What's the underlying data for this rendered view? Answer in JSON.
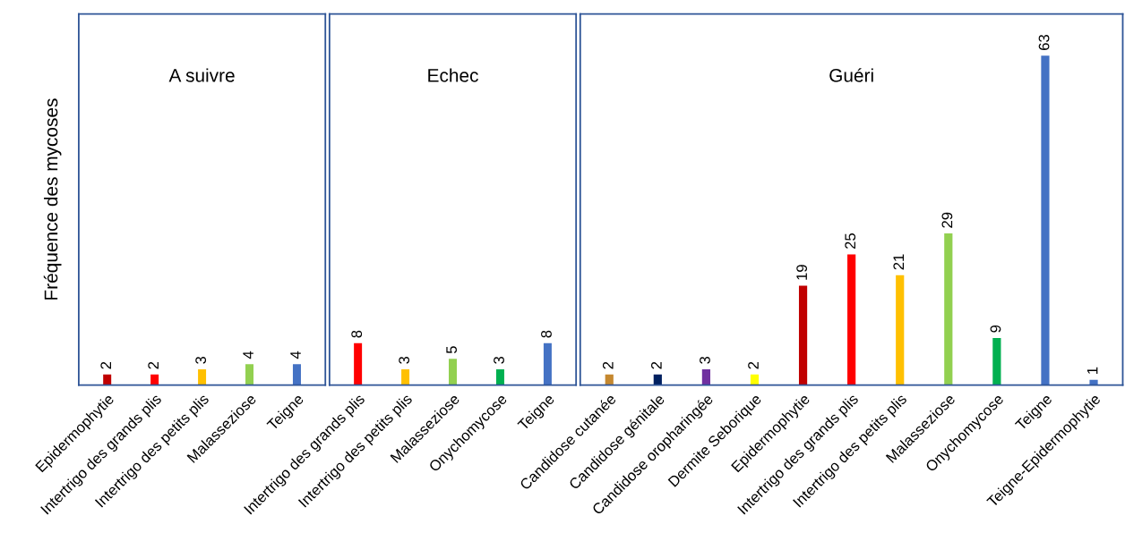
{
  "chart_data": [
    {
      "type": "bar",
      "title": "A suivre",
      "ylabel": "Fréquence des mycoses",
      "categories": [
        "Epidermophytie",
        "Intertrigo des grands plis",
        "Intertrigo des petits plis",
        "Malasseziose",
        "Teigne"
      ],
      "values": [
        2,
        2,
        3,
        4,
        4
      ],
      "colors": [
        "#c00000",
        "#ff0000",
        "#ffc000",
        "#92d050",
        "#4472c4"
      ],
      "ylim": [
        0,
        71
      ],
      "tick_labels": "x",
      "data_labels": true,
      "grid": false,
      "legend": false
    },
    {
      "type": "bar",
      "title": "Echec",
      "categories": [
        "Intertrigo des grands plis",
        "Intertrigo des petits plis",
        "Malasseziose",
        "Onychomycose",
        "Teigne"
      ],
      "values": [
        8,
        3,
        5,
        3,
        8
      ],
      "colors": [
        "#ff0000",
        "#ffc000",
        "#92d050",
        "#00b050",
        "#4472c4"
      ],
      "ylim": [
        0,
        71
      ],
      "tick_labels": "x",
      "data_labels": true,
      "grid": false,
      "legend": false
    },
    {
      "type": "bar",
      "title": "Guéri",
      "categories": [
        "Candidose cutanée",
        "Candidose génitale",
        "Candidose oropharingée",
        "Dermite Seborique",
        "Epidermophytie",
        "Intertrigo des grands plis",
        "Intertrigo des petits plis",
        "Malasseziose",
        "Onychomycose",
        "Teigne",
        "Teigne-Epidermophytie"
      ],
      "values": [
        2,
        2,
        3,
        2,
        19,
        25,
        21,
        29,
        9,
        63,
        1
      ],
      "colors": [
        "#c5882f",
        "#002060",
        "#7030a0",
        "#ffff00",
        "#c00000",
        "#ff0000",
        "#ffc000",
        "#92d050",
        "#00b050",
        "#4472c4",
        "#4472c4"
      ],
      "ylim": [
        0,
        71
      ],
      "tick_labels": "x",
      "data_labels": true,
      "grid": false,
      "legend": false
    }
  ]
}
